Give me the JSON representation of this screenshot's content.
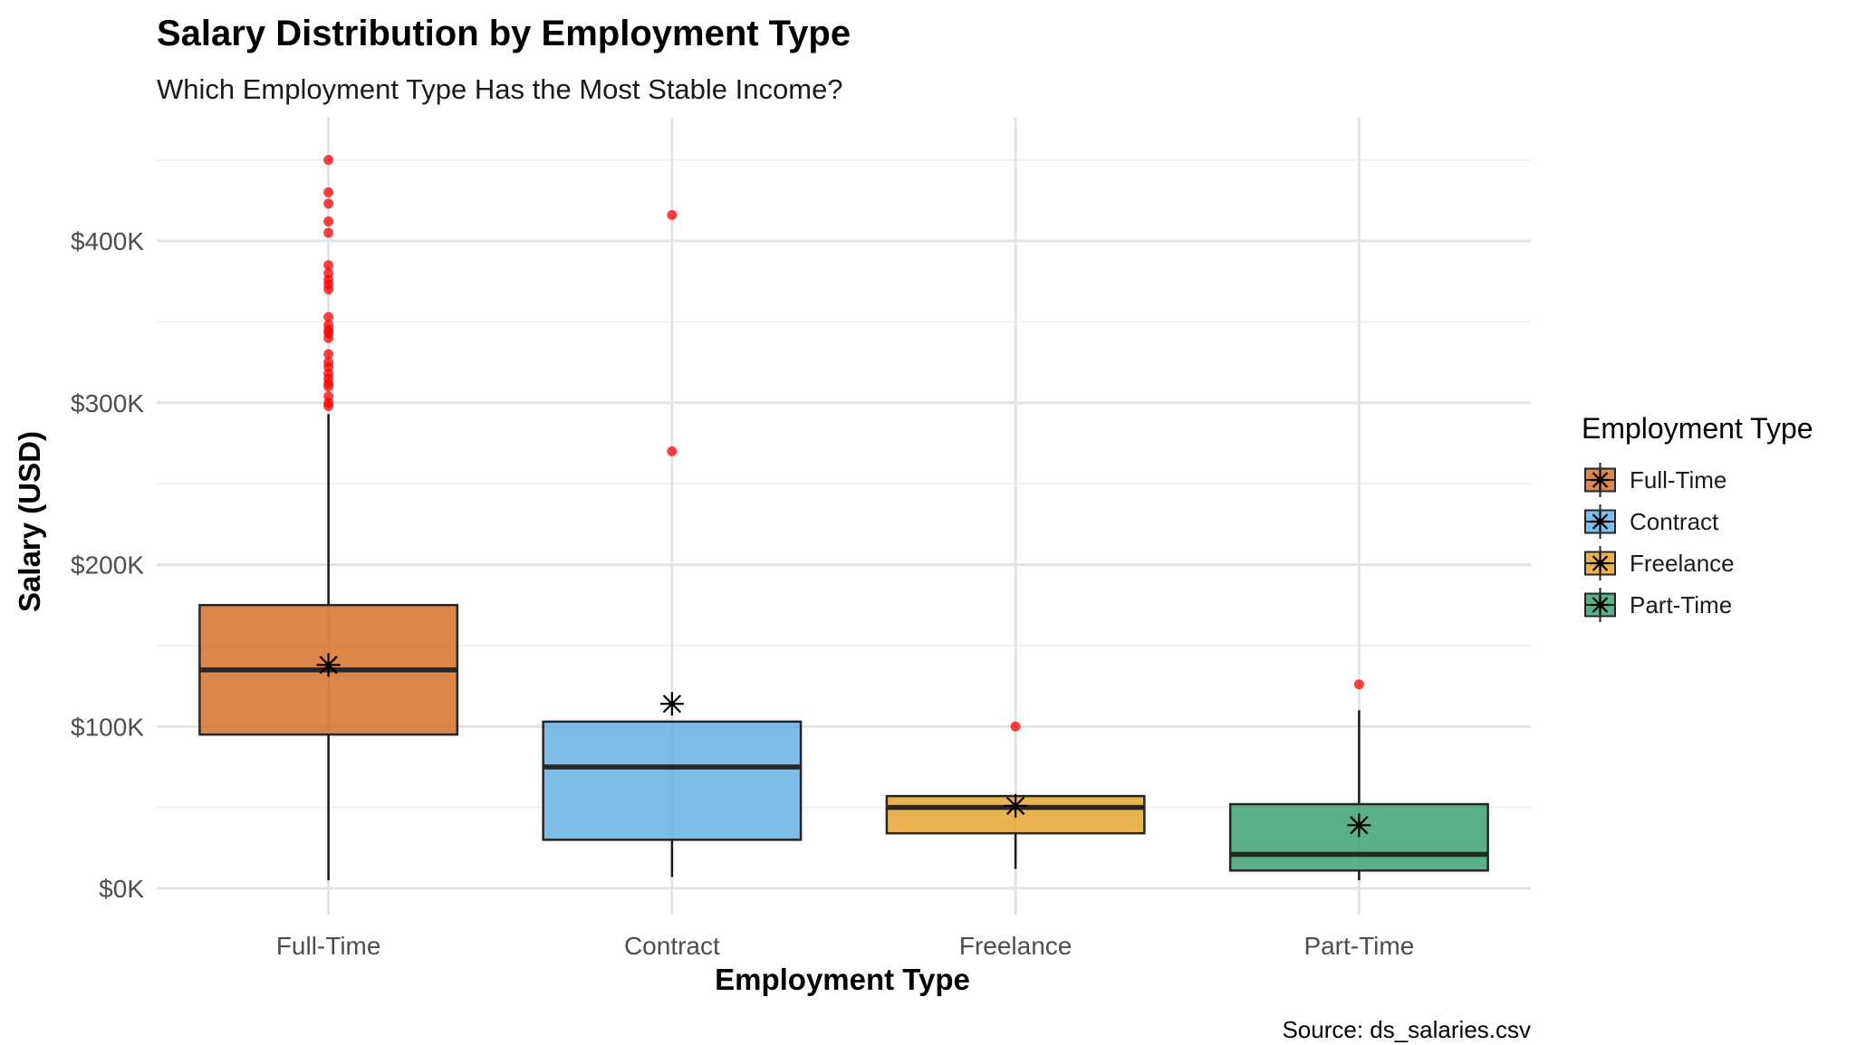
{
  "chart_data": {
    "type": "box",
    "title": "Salary Distribution by Employment Type",
    "subtitle": "Which Employment Type Has the Most Stable Income?",
    "xlabel": "Employment Type",
    "ylabel": "Salary (USD)",
    "caption": "Source: ds_salaries.csv",
    "ylim": [
      -10000,
      460000
    ],
    "y_ticks": [
      {
        "value": 0,
        "label": "$0K"
      },
      {
        "value": 100000,
        "label": "$100K"
      },
      {
        "value": 200000,
        "label": "$200K"
      },
      {
        "value": 300000,
        "label": "$300K"
      },
      {
        "value": 400000,
        "label": "$400K"
      }
    ],
    "grid": true,
    "legend_title": "Employment Type",
    "legend_position": "right",
    "mean_marker": "asterisk",
    "outlier_color": "#ff0000",
    "categories": [
      "Full-Time",
      "Contract",
      "Freelance",
      "Part-Time"
    ],
    "series": [
      {
        "category": "Full-Time",
        "color": "#d2691e",
        "whisker_low": 5000,
        "q1": 95000,
        "median": 135000,
        "q3": 175000,
        "whisker_high": 293000,
        "mean": 138000,
        "outliers": [
          298000,
          300000,
          304000,
          310000,
          312000,
          315000,
          318000,
          322000,
          325000,
          330000,
          340000,
          343000,
          345000,
          348000,
          353000,
          370000,
          373000,
          376000,
          380000,
          385000,
          405000,
          412000,
          423000,
          430000,
          450000
        ]
      },
      {
        "category": "Contract",
        "color": "#5dade2",
        "whisker_low": 7000,
        "q1": 30000,
        "median": 75000,
        "q3": 103000,
        "whisker_high": 103000,
        "mean": 114000,
        "outliers": [
          270000,
          416000
        ]
      },
      {
        "category": "Freelance",
        "color": "#e69f24",
        "whisker_low": 12000,
        "q1": 34000,
        "median": 50000,
        "q3": 57000,
        "whisker_high": 57000,
        "mean": 51000,
        "outliers": [
          100000
        ]
      },
      {
        "category": "Part-Time",
        "color": "#2e9e6b",
        "whisker_low": 5000,
        "q1": 11000,
        "median": 21000,
        "q3": 52000,
        "whisker_high": 110000,
        "mean": 39000,
        "outliers": [
          126000
        ]
      }
    ]
  }
}
